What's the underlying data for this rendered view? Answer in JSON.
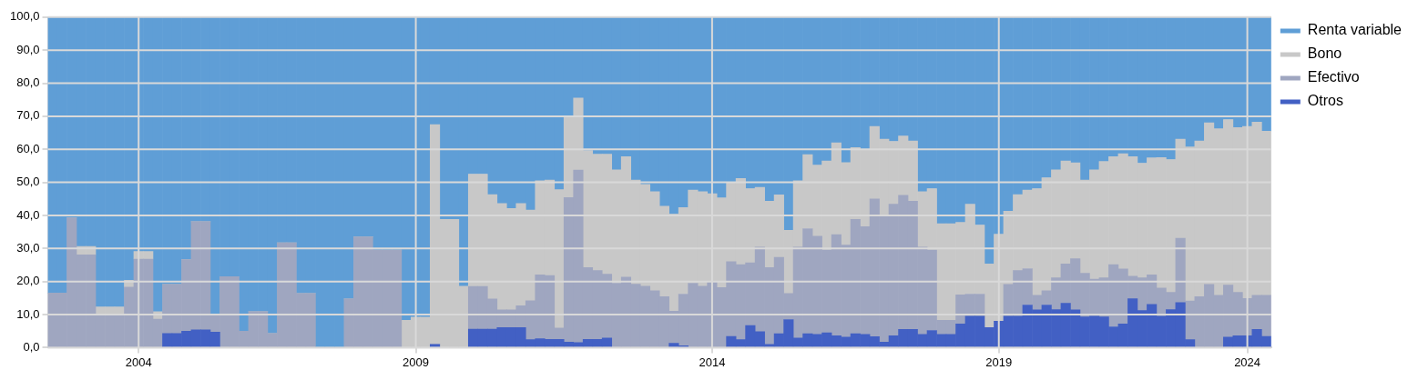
{
  "chart_data": {
    "type": "bar",
    "stacked": true,
    "legend": "right",
    "grid": true,
    "categories": [
      null,
      null,
      null,
      null,
      null,
      null,
      null,
      null,
      null,
      "2004",
      null,
      null,
      null,
      null,
      null,
      null,
      null,
      null,
      null,
      null,
      null,
      null,
      null,
      null,
      null,
      null,
      null,
      null,
      null,
      null,
      null,
      null,
      null,
      null,
      null,
      null,
      null,
      null,
      "2009",
      null,
      null,
      null,
      null,
      null,
      null,
      null,
      null,
      null,
      null,
      null,
      null,
      null,
      null,
      null,
      null,
      null,
      null,
      null,
      null,
      null,
      null,
      null,
      null,
      null,
      null,
      null,
      null,
      null,
      null,
      "2014",
      null,
      null,
      null,
      null,
      null,
      null,
      null,
      null,
      null,
      null,
      null,
      null,
      null,
      null,
      null,
      null,
      null,
      null,
      null,
      null,
      null,
      null,
      null,
      null,
      null,
      null,
      null,
      null,
      null,
      "2019",
      null,
      null,
      null,
      null,
      null,
      null,
      null,
      null,
      null,
      null,
      null,
      null,
      null,
      null,
      null,
      null,
      null,
      null,
      null,
      null,
      null,
      null,
      null,
      null,
      null,
      "2024",
      null,
      null
    ],
    "ylim": [
      0,
      100
    ],
    "yticks": [
      {
        "value": 0,
        "label": "0,0"
      },
      {
        "value": 10,
        "label": "10,0"
      },
      {
        "value": 20,
        "label": "20,0"
      },
      {
        "value": 30,
        "label": "30,0"
      },
      {
        "value": 40,
        "label": "40,0"
      },
      {
        "value": 50,
        "label": "50,0"
      },
      {
        "value": 60,
        "label": "60,0"
      },
      {
        "value": 70,
        "label": "70,0"
      },
      {
        "value": 80,
        "label": "80,0"
      },
      {
        "value": 90,
        "label": "90,0"
      },
      {
        "value": 100,
        "label": "100,0"
      }
    ],
    "series": [
      {
        "name": "Otros",
        "color": "#4260c4",
        "values": [
          0,
          0,
          0,
          0,
          0,
          0,
          0,
          0,
          0,
          0,
          0,
          0,
          4.3,
          4.3,
          5.0,
          5.4,
          5.4,
          4.7,
          0,
          0,
          0,
          0,
          0,
          0,
          0,
          0,
          0,
          0,
          0,
          0,
          0,
          0,
          0,
          0,
          0,
          0,
          0,
          0,
          0,
          0,
          1.0,
          0,
          0,
          0,
          5.6,
          5.6,
          5.6,
          6.1,
          6.1,
          6.1,
          2.4,
          2.7,
          2.5,
          2.5,
          1.7,
          1.5,
          2.5,
          2.5,
          2.9,
          0,
          0,
          0,
          0,
          0,
          0,
          1.3,
          0.6,
          0,
          0,
          0,
          0,
          3.4,
          2.4,
          6.7,
          4.8,
          1.0,
          4.2,
          8.5,
          2.9,
          4.2,
          4.0,
          4.5,
          3.6,
          3.2,
          4.2,
          4.0,
          3.3,
          1.7,
          3.6,
          5.5,
          5.5,
          4.0,
          5.2,
          4.0,
          4.0,
          7.2,
          9.5,
          9.5,
          6.1,
          8.0,
          9.5,
          9.5,
          12.9,
          11.4,
          12.9,
          11.5,
          13.4,
          11.4,
          9.3,
          9.5,
          9.3,
          6.3,
          7.2,
          14.8,
          11.2,
          13.1,
          9.5,
          11.5,
          13.6,
          2.4,
          0,
          0,
          0,
          3.2,
          3.6,
          3.6,
          5.5,
          3.4
        ]
      },
      {
        "name": "Efectivo",
        "color": "#9fa6c0",
        "values": [
          16.5,
          16.5,
          39.3,
          28.1,
          28.1,
          10.1,
          10.1,
          10.1,
          18.3,
          26.8,
          26.8,
          8.6,
          14.8,
          14.8,
          21.6,
          32.7,
          32.7,
          5.4,
          21.5,
          21.5,
          5.0,
          10.9,
          10.9,
          4.3,
          31.7,
          31.7,
          16.4,
          16.4,
          0,
          0,
          0,
          14.7,
          33.5,
          33.5,
          29.5,
          29.5,
          29.5,
          0,
          0,
          0,
          0,
          0,
          0,
          0,
          12.9,
          12.9,
          9.1,
          5.3,
          5.3,
          6.6,
          11.8,
          19.3,
          19.3,
          3.4,
          43.7,
          52.2,
          21.7,
          20.8,
          19.3,
          19.5,
          21.3,
          19.2,
          18.6,
          17.2,
          15.4,
          9.7,
          15.6,
          19.5,
          18.6,
          19.8,
          18.2,
          22.6,
          22.7,
          19.0,
          25.6,
          23.2,
          23.1,
          7.9,
          27.5,
          31.8,
          29.7,
          25.0,
          30.6,
          27.8,
          34.6,
          32.6,
          41.7,
          38.0,
          39.8,
          40.6,
          38.8,
          26.4,
          24.3,
          4.3,
          4.3,
          8.8,
          6.7,
          6.7,
          0,
          0,
          9.6,
          13.8,
          11.0,
          4.4,
          4.3,
          9.6,
          11.9,
          15.5,
          13.2,
          11.2,
          11.8,
          18.8,
          16.6,
          6.8,
          9.9,
          8.9,
          8.5,
          5.2,
          19.5,
          11.7,
          15.4,
          19.1,
          15.8,
          15.7,
          13.1,
          11.3,
          10.3,
          12.4
        ]
      },
      {
        "name": "Bono",
        "color": "#c8c8c8",
        "values": [
          0,
          0,
          0,
          2.5,
          2.5,
          2.2,
          2.2,
          2.2,
          2.1,
          2.3,
          2.3,
          2.3,
          0,
          0,
          0,
          0,
          0,
          0,
          0,
          0,
          0,
          0,
          0,
          0,
          0,
          0,
          0,
          0,
          0,
          0,
          0,
          0,
          0,
          0,
          0,
          0,
          0,
          8.3,
          9.2,
          9.2,
          66.5,
          38.8,
          38.8,
          18.6,
          34.0,
          34.0,
          31.6,
          32.2,
          30.7,
          30.9,
          27.4,
          28.5,
          28.9,
          41.9,
          24.5,
          21.8,
          35.4,
          35.2,
          36.3,
          34.3,
          36.5,
          31.5,
          30.8,
          30.0,
          27.4,
          29.4,
          26.2,
          28.2,
          28.6,
          26.8,
          27.1,
          23.9,
          26.1,
          22.4,
          18.1,
          20.1,
          18.9,
          19.1,
          20.1,
          22.4,
          21.5,
          27.0,
          27.8,
          25.0,
          21.7,
          23.4,
          21.9,
          23.4,
          19.0,
          17.9,
          18.2,
          16.8,
          18.6,
          29.2,
          29.2,
          21.9,
          27.2,
          20.9,
          19.2,
          26.3,
          22.2,
          23.0,
          23.8,
          32.3,
          34.2,
          32.7,
          31.2,
          29.0,
          28.2,
          33.1,
          35.2,
          32.7,
          34.9,
          36.2,
          34.7,
          35.4,
          39.5,
          40.2,
          30.0,
          46.6,
          47.1,
          48.9,
          50.4,
          50.1,
          49.9,
          52.0,
          52.4,
          49.7
        ]
      },
      {
        "name": "Renta variable",
        "color": "#5f9ed6",
        "values": [
          83.5,
          83.5,
          60.7,
          69.4,
          69.4,
          87.7,
          87.7,
          87.7,
          79.6,
          70.9,
          70.9,
          89.1,
          80.9,
          80.9,
          73.4,
          61.9,
          61.9,
          89.9,
          78.5,
          78.5,
          95,
          89.1,
          89.1,
          95.7,
          68.3,
          68.3,
          83.6,
          83.6,
          100,
          100,
          100,
          85.3,
          66.5,
          66.5,
          70.5,
          70.5,
          70.5,
          91.7,
          90.8,
          90.8,
          32.5,
          61.2,
          61.2,
          81.4,
          47.5,
          47.5,
          53.7,
          56.4,
          57.9,
          56.4,
          58.4,
          49.5,
          49.3,
          52.2,
          30.1,
          24.5,
          40.4,
          41.5,
          41.5,
          46.2,
          42.2,
          49.3,
          50.6,
          52.8,
          57.2,
          59.6,
          57.6,
          52.3,
          52.8,
          53.4,
          54.7,
          50.1,
          48.8,
          51.9,
          51.5,
          55.7,
          53.8,
          64.5,
          49.5,
          41.6,
          44.8,
          43.5,
          38.0,
          44.0,
          39.5,
          40.0,
          33.1,
          36.9,
          37.6,
          36.0,
          37.5,
          52.8,
          51.9,
          62.5,
          62.5,
          62.1,
          56.6,
          62.9,
          74.7,
          65.7,
          58.7,
          53.7,
          52.3,
          51.9,
          48.6,
          46.2,
          43.5,
          44.1,
          49.3,
          46.2,
          43.7,
          42.2,
          41.3,
          42.2,
          44.2,
          42.6,
          42.5,
          43.1,
          36.9,
          39.3,
          37.5,
          32.0,
          33.8,
          31.0,
          33.4,
          33.1,
          31.8,
          34.5
        ]
      }
    ]
  }
}
